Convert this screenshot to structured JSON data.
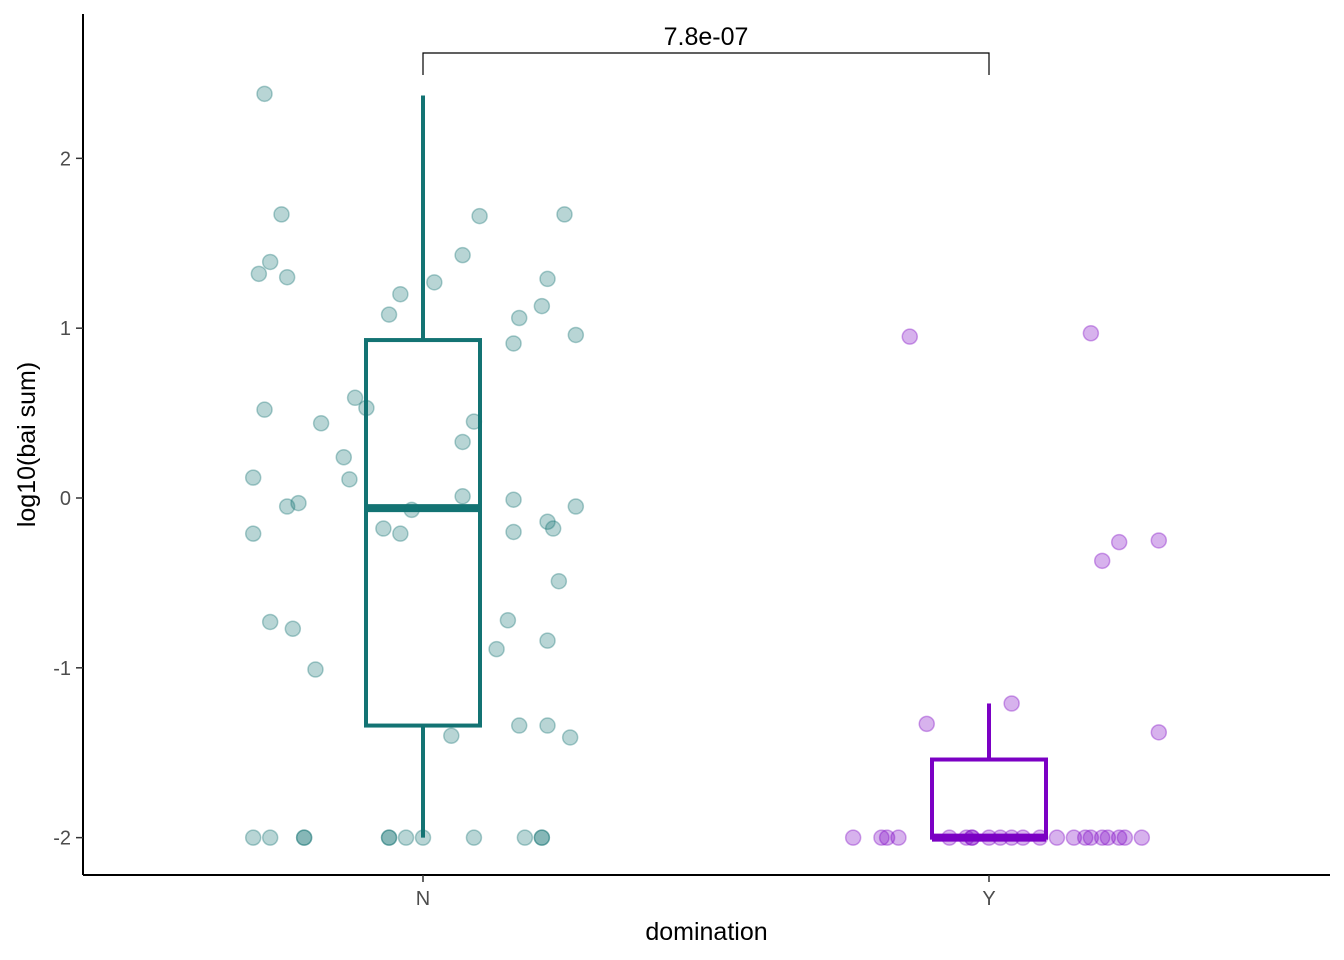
{
  "chart_data": {
    "type": "boxplot",
    "xlabel": "domination",
    "ylabel": "log10(bai sum)",
    "categories": [
      "N",
      "Y"
    ],
    "ylim": [
      -2.22,
      2.85
    ],
    "yticks": [
      -2,
      -1,
      0,
      1,
      2
    ],
    "ytick_labels": [
      "-2",
      "-1",
      "0",
      "1",
      "2"
    ],
    "grid": false,
    "legend": "none",
    "comparison": {
      "groups": [
        "N",
        "Y"
      ],
      "label": "7.8e-07"
    },
    "series": [
      {
        "category": "N",
        "color": "#137373",
        "box": {
          "min": -2.0,
          "q1": -1.34,
          "median": -0.06,
          "q3": 0.93,
          "max": 2.37
        },
        "points": [
          [
            -0.28,
            2.38
          ],
          [
            -0.25,
            1.67
          ],
          [
            -0.27,
            1.39
          ],
          [
            -0.29,
            1.32
          ],
          [
            -0.24,
            1.3
          ],
          [
            -0.28,
            0.52
          ],
          [
            -0.18,
            0.44
          ],
          [
            -0.12,
            0.59
          ],
          [
            -0.1,
            0.53
          ],
          [
            -0.14,
            0.24
          ],
          [
            -0.13,
            0.11
          ],
          [
            -0.3,
            0.12
          ],
          [
            -0.24,
            -0.05
          ],
          [
            -0.22,
            -0.03
          ],
          [
            -0.3,
            -0.21
          ],
          [
            -0.27,
            -0.73
          ],
          [
            -0.23,
            -0.77
          ],
          [
            -0.19,
            -1.01
          ],
          [
            -0.06,
            1.08
          ],
          [
            -0.04,
            1.2
          ],
          [
            0.02,
            1.27
          ],
          [
            -0.07,
            -0.18
          ],
          [
            -0.04,
            -0.21
          ],
          [
            -0.02,
            -0.07
          ],
          [
            0.07,
            1.43
          ],
          [
            0.1,
            1.66
          ],
          [
            0.09,
            0.45
          ],
          [
            0.07,
            0.33
          ],
          [
            0.07,
            0.01
          ],
          [
            0.05,
            -1.4
          ],
          [
            0.16,
            0.91
          ],
          [
            0.17,
            1.06
          ],
          [
            0.21,
            1.13
          ],
          [
            0.22,
            1.29
          ],
          [
            0.25,
            1.67
          ],
          [
            0.27,
            0.96
          ],
          [
            0.16,
            -0.01
          ],
          [
            0.16,
            -0.2
          ],
          [
            0.22,
            -0.14
          ],
          [
            0.23,
            -0.18
          ],
          [
            0.27,
            -0.05
          ],
          [
            0.24,
            -0.49
          ],
          [
            0.15,
            -0.72
          ],
          [
            0.13,
            -0.89
          ],
          [
            0.22,
            -0.84
          ],
          [
            0.17,
            -1.34
          ],
          [
            0.22,
            -1.34
          ],
          [
            0.26,
            -1.41
          ],
          [
            -0.3,
            -2.0
          ],
          [
            -0.27,
            -2.0
          ],
          [
            -0.21,
            -2.0
          ],
          [
            -0.21,
            -2.0
          ],
          [
            -0.06,
            -2.0
          ],
          [
            -0.06,
            -2.0
          ],
          [
            -0.03,
            -2.0
          ],
          [
            0.0,
            -2.0
          ],
          [
            0.09,
            -2.0
          ],
          [
            0.18,
            -2.0
          ],
          [
            0.21,
            -2.0
          ],
          [
            0.21,
            -2.0
          ]
        ]
      },
      {
        "category": "Y",
        "color": "#7b00c4",
        "box": {
          "min": -2.0,
          "q1": -2.0,
          "median": -2.0,
          "q3": -1.54,
          "max": -1.21
        },
        "points": [
          [
            -0.14,
            0.95
          ],
          [
            0.18,
            0.97
          ],
          [
            0.23,
            -0.26
          ],
          [
            0.3,
            -0.25
          ],
          [
            0.2,
            -0.37
          ],
          [
            -0.11,
            -1.33
          ],
          [
            0.04,
            -1.21
          ],
          [
            0.3,
            -1.38
          ],
          [
            -0.24,
            -2.0
          ],
          [
            -0.19,
            -2.0
          ],
          [
            -0.18,
            -2.0
          ],
          [
            -0.16,
            -2.0
          ],
          [
            -0.07,
            -2.0
          ],
          [
            -0.04,
            -2.0
          ],
          [
            -0.03,
            -2.0
          ],
          [
            -0.03,
            -2.0
          ],
          [
            0.0,
            -2.0
          ],
          [
            0.02,
            -2.0
          ],
          [
            0.04,
            -2.0
          ],
          [
            0.06,
            -2.0
          ],
          [
            0.09,
            -2.0
          ],
          [
            0.12,
            -2.0
          ],
          [
            0.15,
            -2.0
          ],
          [
            0.17,
            -2.0
          ],
          [
            0.18,
            -2.0
          ],
          [
            0.2,
            -2.0
          ],
          [
            0.21,
            -2.0
          ],
          [
            0.23,
            -2.0
          ],
          [
            0.24,
            -2.0
          ],
          [
            0.27,
            -2.0
          ]
        ]
      }
    ]
  }
}
